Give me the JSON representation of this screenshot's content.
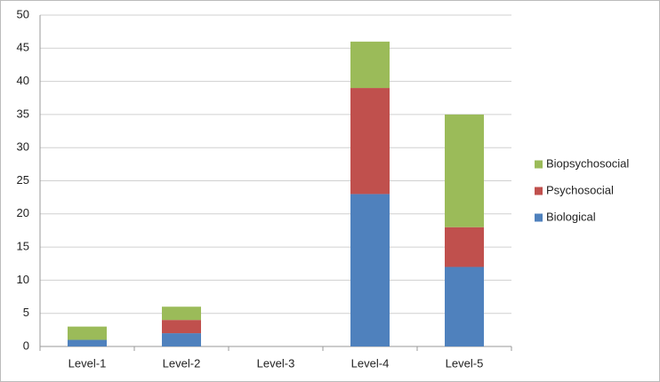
{
  "chart_data": {
    "type": "stacked-bar",
    "categories": [
      "Level-1",
      "Level-2",
      "Level-3",
      "Level-4",
      "Level-5"
    ],
    "series": [
      {
        "name": "Biological",
        "color": "#4f81bd",
        "values": [
          1,
          2,
          0,
          23,
          12
        ]
      },
      {
        "name": "Psychosocial",
        "color": "#c0504d",
        "values": [
          0,
          2,
          0,
          16,
          6
        ]
      },
      {
        "name": "Biopsychosocial",
        "color": "#9bbb59",
        "values": [
          2,
          2,
          0,
          7,
          17
        ]
      }
    ],
    "ylim": [
      0,
      50
    ],
    "yticks": [
      0,
      5,
      10,
      15,
      20,
      25,
      30,
      35,
      40,
      45,
      50
    ],
    "grid": true,
    "legend": "right"
  }
}
